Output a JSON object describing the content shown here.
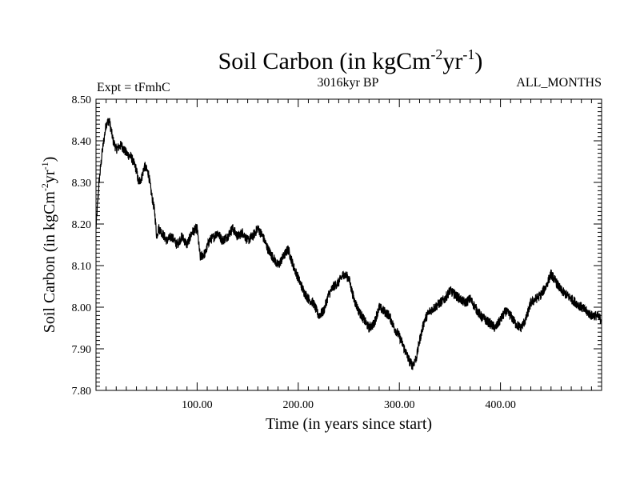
{
  "chart_data": {
    "type": "line",
    "title_main": "Soil Carbon (in kgCm",
    "title_sup1": "-2",
    "title_mid": "yr",
    "title_sup2": "-1",
    "title_end": ")",
    "subtitle_left": "Expt = tFmhC",
    "subtitle_center": "3016kyr BP",
    "subtitle_right": "ALL_MONTHS",
    "xlabel": "Time (in years since start)",
    "ylabel_main": "Soil Carbon (in kgCm",
    "ylabel_sup1": "-2",
    "ylabel_mid": "yr",
    "ylabel_sup2": "-1",
    "ylabel_end": ")",
    "xlim": [
      0,
      500
    ],
    "ylim": [
      7.8,
      8.5
    ],
    "x_ticks": [
      100,
      200,
      300,
      400
    ],
    "x_tick_labels": [
      "100.00",
      "200.00",
      "300.00",
      "400.00"
    ],
    "y_ticks": [
      7.8,
      7.9,
      8.0,
      8.1,
      8.2,
      8.3,
      8.4,
      8.5
    ],
    "y_tick_labels": [
      "7.80",
      "7.90",
      "8.00",
      "8.10",
      "8.20",
      "8.30",
      "8.40",
      "8.50"
    ],
    "noise_amplitude": 0.012,
    "series": [
      {
        "name": "Soil Carbon",
        "color": "#000000",
        "x": [
          0,
          3,
          6,
          10,
          13,
          17,
          20,
          25,
          30,
          35,
          40,
          42,
          45,
          48,
          52,
          55,
          58,
          60,
          62,
          65,
          70,
          75,
          80,
          85,
          90,
          95,
          100,
          103,
          108,
          112,
          117,
          120,
          125,
          130,
          135,
          140,
          145,
          150,
          155,
          160,
          165,
          170,
          175,
          180,
          185,
          190,
          195,
          200,
          205,
          210,
          215,
          220,
          225,
          230,
          235,
          240,
          245,
          250,
          255,
          260,
          265,
          270,
          275,
          280,
          285,
          290,
          295,
          300,
          305,
          310,
          313,
          317,
          320,
          325,
          330,
          335,
          340,
          345,
          350,
          355,
          360,
          365,
          370,
          375,
          380,
          385,
          390,
          395,
          400,
          405,
          410,
          415,
          420,
          425,
          430,
          435,
          440,
          445,
          450,
          455,
          460,
          465,
          470,
          475,
          480,
          485,
          490,
          495,
          500
        ],
        "values": [
          8.19,
          8.3,
          8.37,
          8.44,
          8.45,
          8.4,
          8.38,
          8.39,
          8.37,
          8.36,
          8.33,
          8.3,
          8.31,
          8.34,
          8.32,
          8.27,
          8.23,
          8.17,
          8.19,
          8.18,
          8.16,
          8.17,
          8.15,
          8.17,
          8.15,
          8.18,
          8.19,
          8.12,
          8.13,
          8.16,
          8.17,
          8.18,
          8.16,
          8.17,
          8.19,
          8.17,
          8.18,
          8.16,
          8.17,
          8.19,
          8.17,
          8.14,
          8.12,
          8.1,
          8.12,
          8.14,
          8.1,
          8.07,
          8.04,
          8.02,
          8.01,
          7.98,
          7.99,
          8.03,
          8.05,
          8.06,
          8.08,
          8.07,
          8.02,
          7.99,
          7.97,
          7.95,
          7.96,
          8.0,
          7.99,
          7.98,
          7.95,
          7.93,
          7.9,
          7.87,
          7.86,
          7.88,
          7.92,
          7.97,
          7.99,
          8.0,
          8.01,
          8.02,
          8.04,
          8.03,
          8.02,
          8.01,
          8.02,
          8.0,
          7.98,
          7.97,
          7.96,
          7.95,
          7.97,
          7.99,
          7.98,
          7.96,
          7.95,
          7.97,
          8.01,
          8.02,
          8.03,
          8.05,
          8.08,
          8.06,
          8.04,
          8.03,
          8.02,
          8.01,
          8.0,
          7.99,
          7.98,
          7.98,
          7.97
        ]
      }
    ]
  }
}
